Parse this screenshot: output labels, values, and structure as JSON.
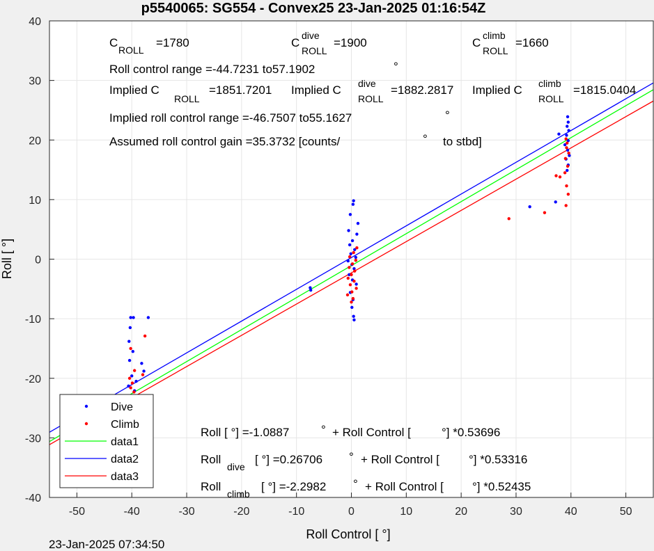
{
  "chart_data": {
    "type": "scatter",
    "title": "p5540065: SG554 - Convex25 23-Jan-2025 01:16:54Z",
    "xlabel": "Roll Control [   °]",
    "ylabel": "Roll [  °]",
    "xlim": [
      -55,
      55
    ],
    "ylim": [
      -40,
      40
    ],
    "xticks": [
      -50,
      -40,
      -30,
      -20,
      -10,
      0,
      10,
      20,
      30,
      40,
      50
    ],
    "yticks": [
      -40,
      -30,
      -20,
      -10,
      0,
      10,
      20,
      30,
      40
    ],
    "grid": true,
    "legend_placement": "bottom-left",
    "timestamp": "23-Jan-2025 07:34:50",
    "colors": {
      "dive": "#0000ff",
      "climb": "#ff0000",
      "data1": "#00ff00",
      "data2": "#0000ff",
      "data3": "#ff0000"
    },
    "legend": [
      "Dive",
      "Climb",
      "data1",
      "data2",
      "data3"
    ],
    "series": [
      {
        "name": "Dive",
        "marker": "dot",
        "color": "#0000ff",
        "points": [
          [
            -48.2,
            -24.6
          ],
          [
            -40.2,
            -9.8
          ],
          [
            -39.7,
            -9.8
          ],
          [
            -37.0,
            -9.8
          ],
          [
            -40.3,
            -11.5
          ],
          [
            -40.5,
            -13.8
          ],
          [
            -39.8,
            -15.5
          ],
          [
            -40.4,
            -17.0
          ],
          [
            -38.2,
            -17.5
          ],
          [
            -37.8,
            -18.8
          ],
          [
            -40.0,
            -19.6
          ],
          [
            -39.2,
            -20.5
          ],
          [
            -40.6,
            -21.3
          ],
          [
            -39.5,
            -22.1
          ],
          [
            -40.1,
            -23.0
          ],
          [
            -39.0,
            -23.8
          ],
          [
            -40.3,
            -24.5
          ],
          [
            -7.5,
            -4.8
          ],
          [
            -7.4,
            -5.2
          ],
          [
            0.4,
            9.8
          ],
          [
            0.3,
            9.2
          ],
          [
            -0.2,
            7.5
          ],
          [
            1.2,
            6.0
          ],
          [
            -0.5,
            4.8
          ],
          [
            1.0,
            4.2
          ],
          [
            0.2,
            3.1
          ],
          [
            -0.3,
            2.4
          ],
          [
            0.6,
            1.6
          ],
          [
            -0.1,
            0.9
          ],
          [
            0.8,
            0.3
          ],
          [
            -0.6,
            -0.3
          ],
          [
            0.1,
            -0.9
          ],
          [
            0.5,
            -1.6
          ],
          [
            -0.4,
            -2.6
          ],
          [
            0.2,
            -3.5
          ],
          [
            0.9,
            -4.2
          ],
          [
            -0.2,
            -5.6
          ],
          [
            0.3,
            -6.8
          ],
          [
            0.1,
            -8.1
          ],
          [
            0.4,
            -9.6
          ],
          [
            0.5,
            -10.2
          ],
          [
            32.5,
            8.8
          ],
          [
            37.2,
            9.6
          ],
          [
            37.8,
            21.0
          ],
          [
            39.4,
            23.9
          ],
          [
            39.5,
            23.0
          ],
          [
            39.3,
            22.3
          ],
          [
            39.6,
            21.6
          ],
          [
            39.2,
            20.8
          ],
          [
            39.5,
            19.9
          ],
          [
            38.9,
            19.2
          ],
          [
            39.4,
            18.3
          ],
          [
            39.7,
            17.4
          ],
          [
            39.1,
            16.8
          ],
          [
            39.5,
            15.8
          ],
          [
            39.3,
            14.9
          ]
        ]
      },
      {
        "name": "Climb",
        "marker": "dot",
        "color": "#ff0000",
        "points": [
          [
            -48.0,
            -27.4
          ],
          [
            -37.6,
            -12.9
          ],
          [
            -40.2,
            -15.0
          ],
          [
            -39.5,
            -18.7
          ],
          [
            -38.0,
            -19.4
          ],
          [
            -40.4,
            -20.0
          ],
          [
            -39.9,
            -20.8
          ],
          [
            -40.2,
            -21.6
          ],
          [
            -39.6,
            -22.3
          ],
          [
            -40.1,
            -23.0
          ],
          [
            -39.4,
            -23.5
          ],
          [
            -40.0,
            -24.2
          ],
          [
            -39.3,
            -24.8
          ],
          [
            -38.9,
            -25.3
          ],
          [
            -40.3,
            -25.9
          ],
          [
            -39.7,
            -26.5
          ],
          [
            1.0,
            1.9
          ],
          [
            0.4,
            1.1
          ],
          [
            -0.3,
            0.4
          ],
          [
            0.8,
            -0.2
          ],
          [
            0.2,
            -0.8
          ],
          [
            -0.4,
            -1.4
          ],
          [
            0.6,
            -2.0
          ],
          [
            0.0,
            -2.6
          ],
          [
            -0.6,
            -3.2
          ],
          [
            0.5,
            -3.7
          ],
          [
            -0.2,
            -4.3
          ],
          [
            0.9,
            -4.9
          ],
          [
            0.1,
            -5.5
          ],
          [
            -0.7,
            -6.0
          ],
          [
            0.3,
            -6.6
          ],
          [
            0.0,
            -7.2
          ],
          [
            28.7,
            6.8
          ],
          [
            35.2,
            7.8
          ],
          [
            37.3,
            14.0
          ],
          [
            38.0,
            13.8
          ],
          [
            39.1,
            9.0
          ],
          [
            39.5,
            10.9
          ],
          [
            39.2,
            12.3
          ],
          [
            38.9,
            14.5
          ],
          [
            39.4,
            15.6
          ],
          [
            39.0,
            16.9
          ],
          [
            39.6,
            17.8
          ],
          [
            39.2,
            18.7
          ],
          [
            39.3,
            19.5
          ],
          [
            39.1,
            20.2
          ]
        ]
      },
      {
        "name": "data1",
        "type": "line",
        "color": "#00ff00",
        "points": [
          [
            -55,
            -30.62
          ],
          [
            55,
            28.45
          ]
        ]
      },
      {
        "name": "data2",
        "type": "line",
        "color": "#0000ff",
        "points": [
          [
            -55,
            -29.06
          ],
          [
            55,
            29.59
          ]
        ]
      },
      {
        "name": "data3",
        "type": "line",
        "color": "#ff0000",
        "points": [
          [
            -55,
            -31.14
          ],
          [
            55,
            26.54
          ]
        ]
      }
    ],
    "annotations": {
      "c_roll": {
        "base": "C",
        "sub": "ROLL",
        "value": "=1780"
      },
      "c_roll_dive": {
        "base": "C",
        "sup": "dive",
        "sub": "ROLL",
        "value": "=1900"
      },
      "c_roll_climb": {
        "base": "C",
        "sup": "climb",
        "sub": "ROLL",
        "value": "=1660"
      },
      "range_text": "Roll control range =-44.7231 to57.1902",
      "implied_c1": "Implied C",
      "implied_c1_sub": "ROLL",
      "implied_c1_val": "=1851.7201",
      "implied_c2": "Implied C",
      "implied_c2_sup": "dive",
      "implied_c2_sub": "ROLL",
      "implied_c2_val": "=1882.2817",
      "implied_c3": "Implied C",
      "implied_c3_sup": "climb",
      "implied_c3_sub": "ROLL",
      "implied_c3_val": "=1815.0404",
      "implied_range_text": "Implied roll control range =-46.7507 to55.1627",
      "gain_text": "Assumed roll control gain =35.3732 [counts/",
      "gain_text_end": "to stbd]",
      "deg": "°",
      "eq1_left": "Roll [  °] =-1.0887",
      "eq1_right": "+ Roll Control [",
      "eq1_end": "°] *0.53696",
      "eq2_base": "Roll",
      "eq2_sub": "dive",
      "eq2_mid": "[  °] =0.26706",
      "eq2_right": "+ Roll Control [",
      "eq2_end": "°] *0.53316",
      "eq3_base": "Roll",
      "eq3_sub": "climb",
      "eq3_mid": "[  °] =-2.2982",
      "eq3_right": "+ Roll Control [",
      "eq3_end": "°] *0.52435"
    }
  }
}
